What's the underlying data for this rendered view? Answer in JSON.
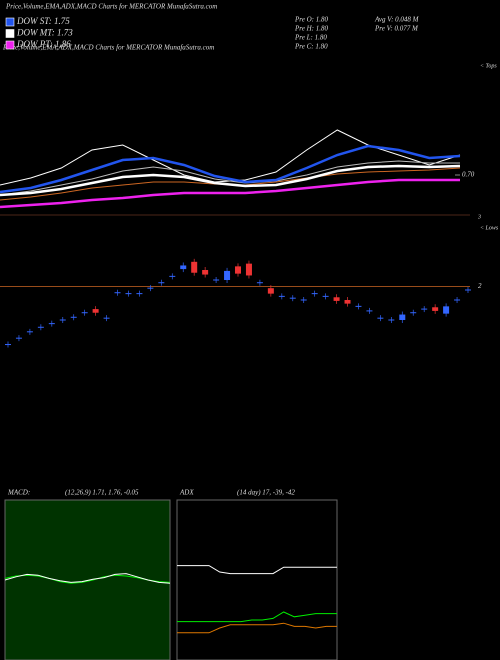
{
  "chart_data": [
    {
      "type": "line",
      "title": "Price,Volume,EMA,ADX,MACD Charts for MERCATOR MunafaSutra.com",
      "info": [
        "Pre  O: 1.80",
        "Pre  H: 1.80",
        "Pre  L: 1.80",
        "Pre  C: 1.80",
        "Avg  V: 0.048 M",
        "Pre  V: 0.077 M"
      ],
      "annotations": [
        "< Tops",
        "3"
      ],
      "ylim": [
        0.5,
        1.3
      ],
      "yticks": [
        {
          "value": 0.7,
          "label": "0.70"
        }
      ],
      "series": [
        {
          "color": "#ffffff",
          "values": [
            0.65,
            0.685,
            0.735,
            0.825,
            0.85,
            0.775,
            0.7,
            0.665,
            0.675,
            0.715,
            0.825,
            0.925,
            0.85,
            0.8,
            0.75,
            0.8
          ]
        },
        {
          "color": "#bbbbbb",
          "values": [
            0.6,
            0.62,
            0.65,
            0.68,
            0.72,
            0.74,
            0.72,
            0.68,
            0.66,
            0.67,
            0.7,
            0.74,
            0.76,
            0.77,
            0.76,
            0.76
          ]
        },
        {
          "color": "#cc6622",
          "values": [
            0.575,
            0.59,
            0.61,
            0.635,
            0.65,
            0.665,
            0.665,
            0.655,
            0.65,
            0.665,
            0.685,
            0.705,
            0.715,
            0.72,
            0.725,
            0.735
          ]
        },
        {
          "name": "DOW ST: 1.75",
          "color": "#2255ee",
          "values": [
            0.615,
            0.635,
            0.675,
            0.725,
            0.775,
            0.785,
            0.75,
            0.695,
            0.665,
            0.675,
            0.735,
            0.8,
            0.845,
            0.825,
            0.785,
            0.795
          ]
        },
        {
          "name": "DOW MT: 1.73",
          "color": "#ffffff",
          "values": [
            0.6,
            0.61,
            0.63,
            0.66,
            0.69,
            0.7,
            0.69,
            0.66,
            0.645,
            0.65,
            0.68,
            0.72,
            0.74,
            0.745,
            0.74,
            0.745
          ]
        },
        {
          "name": "DOW PT: 1.86",
          "color": "#ee22ee",
          "values": [
            0.54,
            0.55,
            0.56,
            0.575,
            0.585,
            0.6,
            0.61,
            0.61,
            0.61,
            0.62,
            0.635,
            0.65,
            0.665,
            0.675,
            0.675,
            0.675
          ]
        }
      ]
    },
    {
      "type": "candlestick",
      "annotations": [
        "< Lows"
      ],
      "ylim": [
        1.3,
        2.4
      ],
      "yticks": [
        2
      ],
      "up_color": "#3366ff",
      "down_color": "#ee3333",
      "open": [
        1.36,
        1.43,
        1.5,
        1.55,
        1.59,
        1.63,
        1.66,
        1.71,
        1.75,
        1.65,
        1.93,
        1.92,
        1.92,
        1.98,
        2.04,
        2.11,
        2.19,
        2.27,
        2.18,
        2.07,
        2.07,
        2.22,
        2.25,
        2.04,
        1.98,
        1.89,
        1.87,
        1.85,
        1.92,
        1.89,
        1.88,
        1.85,
        1.78,
        1.73,
        1.65,
        1.63,
        1.63,
        1.71,
        1.75,
        1.77,
        1.7,
        1.85,
        1.96
      ],
      "close": [
        1.36,
        1.43,
        1.5,
        1.55,
        1.59,
        1.63,
        1.66,
        1.71,
        1.71,
        1.65,
        1.93,
        1.92,
        1.92,
        1.98,
        2.04,
        2.11,
        2.23,
        2.15,
        2.13,
        2.07,
        2.17,
        2.14,
        2.12,
        2.04,
        1.92,
        1.89,
        1.87,
        1.85,
        1.92,
        1.89,
        1.84,
        1.81,
        1.78,
        1.73,
        1.65,
        1.63,
        1.69,
        1.71,
        1.75,
        1.73,
        1.78,
        1.85,
        1.96
      ]
    },
    {
      "type": "line",
      "title": "MACD:",
      "subtitle": "(12,26,9) 1.71, 1.76, -0.05",
      "background": "#003300",
      "ylim": [
        -1,
        1
      ],
      "series": [
        {
          "color": "#00ee00",
          "values": [
            0.02,
            0.05,
            0.06,
            0.05,
            0.02,
            -0.02,
            -0.04,
            -0.03,
            0.0,
            0.04,
            0.06,
            0.05,
            0.03,
            0.0,
            -0.02,
            -0.03
          ]
        },
        {
          "color": "#ffffff",
          "values": [
            0.0,
            0.04,
            0.07,
            0.06,
            0.02,
            -0.01,
            -0.03,
            -0.02,
            0.01,
            0.03,
            0.07,
            0.08,
            0.04,
            0.0,
            -0.03,
            -0.04
          ]
        }
      ]
    },
    {
      "type": "line",
      "title": "ADX",
      "subtitle": "(14 day) 17, -39, -42",
      "background": "#000000",
      "ylim": [
        0,
        100
      ],
      "series": [
        {
          "color": "#ffffff",
          "values": [
            59,
            59,
            59,
            59,
            55,
            54,
            54,
            54,
            54,
            54,
            58,
            58,
            58,
            58,
            58,
            58
          ]
        },
        {
          "color": "#00ee00",
          "values": [
            24,
            24,
            24,
            24,
            24,
            24,
            24,
            25,
            25,
            26,
            30,
            27,
            28,
            29,
            29,
            29
          ]
        },
        {
          "color": "#dd7700",
          "values": [
            17,
            17,
            17,
            17,
            20,
            22,
            22,
            22,
            22,
            22,
            23,
            21,
            21,
            20,
            21,
            21
          ]
        }
      ]
    }
  ]
}
